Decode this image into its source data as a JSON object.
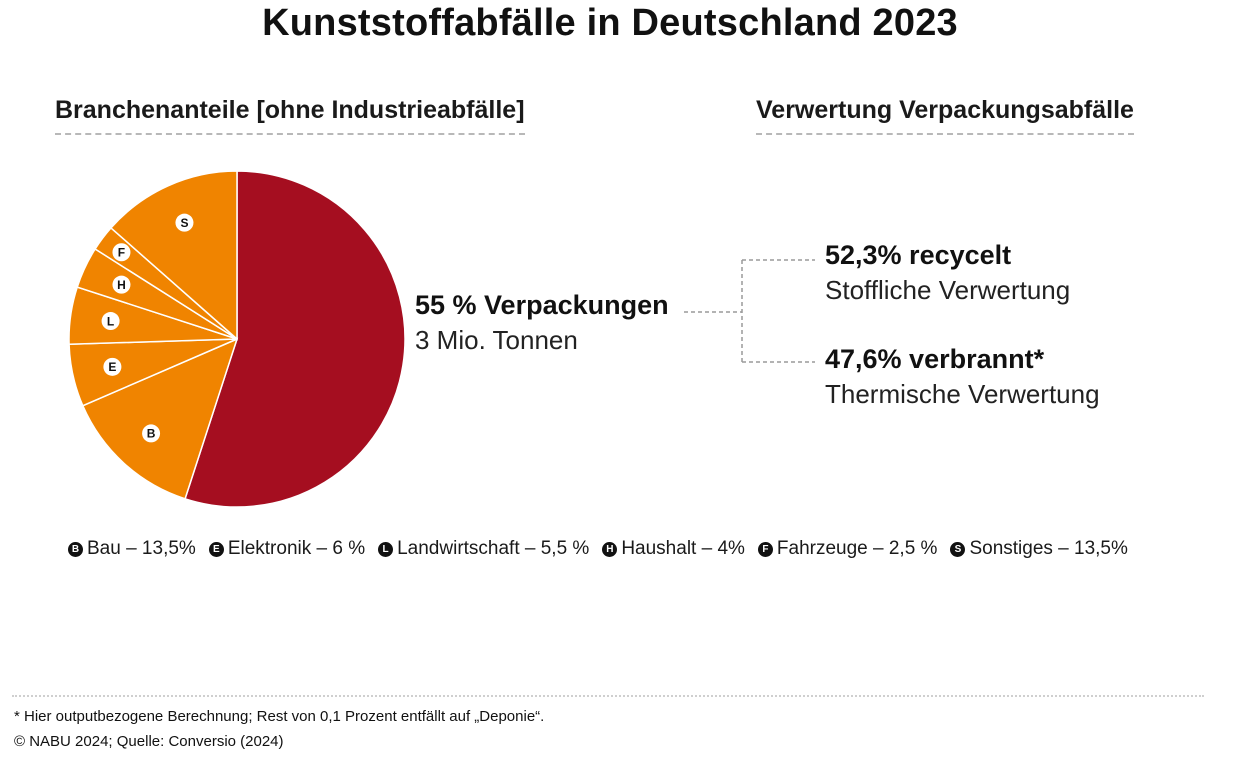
{
  "title": "Kunststoffabfälle in Deutschland 2023",
  "left_heading": "Branchenanteile [ohne Industrieabfälle]",
  "right_heading": "Verwertung Verpackungsabfälle",
  "colors": {
    "packaging": "#A50E20",
    "other_sectors": "#F08400",
    "divider": "#ffffff",
    "badge": "#111111",
    "connector": "#9a9a9a"
  },
  "chart_data": [
    {
      "type": "pie",
      "title": "Branchenanteile [ohne Industrieabfälle]",
      "slices": [
        {
          "key": "verpackungen",
          "label": "Verpackungen",
          "value": 55,
          "letter": ""
        },
        {
          "key": "bau",
          "label": "Bau",
          "value": 13.5,
          "letter": "B"
        },
        {
          "key": "elektronik",
          "label": "Elektronik",
          "value": 6,
          "letter": "E"
        },
        {
          "key": "landwirtschaft",
          "label": "Landwirtschaft",
          "value": 5.5,
          "letter": "L"
        },
        {
          "key": "haushalt",
          "label": "Haushalt",
          "value": 4,
          "letter": "H"
        },
        {
          "key": "fahrzeuge",
          "label": "Fahrzeuge",
          "value": 2.5,
          "letter": "F"
        },
        {
          "key": "sonstiges",
          "label": "Sonstiges",
          "value": 13.5,
          "letter": "S"
        }
      ]
    },
    {
      "type": "table",
      "title": "Verwertung Verpackungsabfälle",
      "rows": [
        {
          "label": "recycelt",
          "value": 52.3,
          "description": "Stoffliche Verwertung"
        },
        {
          "label": "verbrannt",
          "value": 47.6,
          "description": "Thermische Verwertung"
        }
      ]
    }
  ],
  "callouts": {
    "verpackungen": {
      "main": "55 % Verpackungen",
      "sub": "3 Mio. Tonnen"
    },
    "recycelt": {
      "main": "52,3% recycelt",
      "sub": "Stoffliche Verwertung"
    },
    "verbrannt": {
      "main": "47,6% verbrannt*",
      "sub": "Thermische Verwertung"
    }
  },
  "legend": [
    {
      "letter": "B",
      "text": "Bau – 13,5%"
    },
    {
      "letter": "E",
      "text": "Elektronik – 6 %"
    },
    {
      "letter": "L",
      "text": "Landwirtschaft – 5,5 %"
    },
    {
      "letter": "H",
      "text": "Haushalt – 4%"
    },
    {
      "letter": "F",
      "text": "Fahrzeuge – 2,5 %"
    },
    {
      "letter": "S",
      "text": "Sonstiges – 13,5%"
    }
  ],
  "footnote": "* Hier outputbezogene Berechnung; Rest von 0,1 Prozent entfällt auf „Deponie“.",
  "source": "© NABU 2024; Quelle: Conversio (2024)"
}
